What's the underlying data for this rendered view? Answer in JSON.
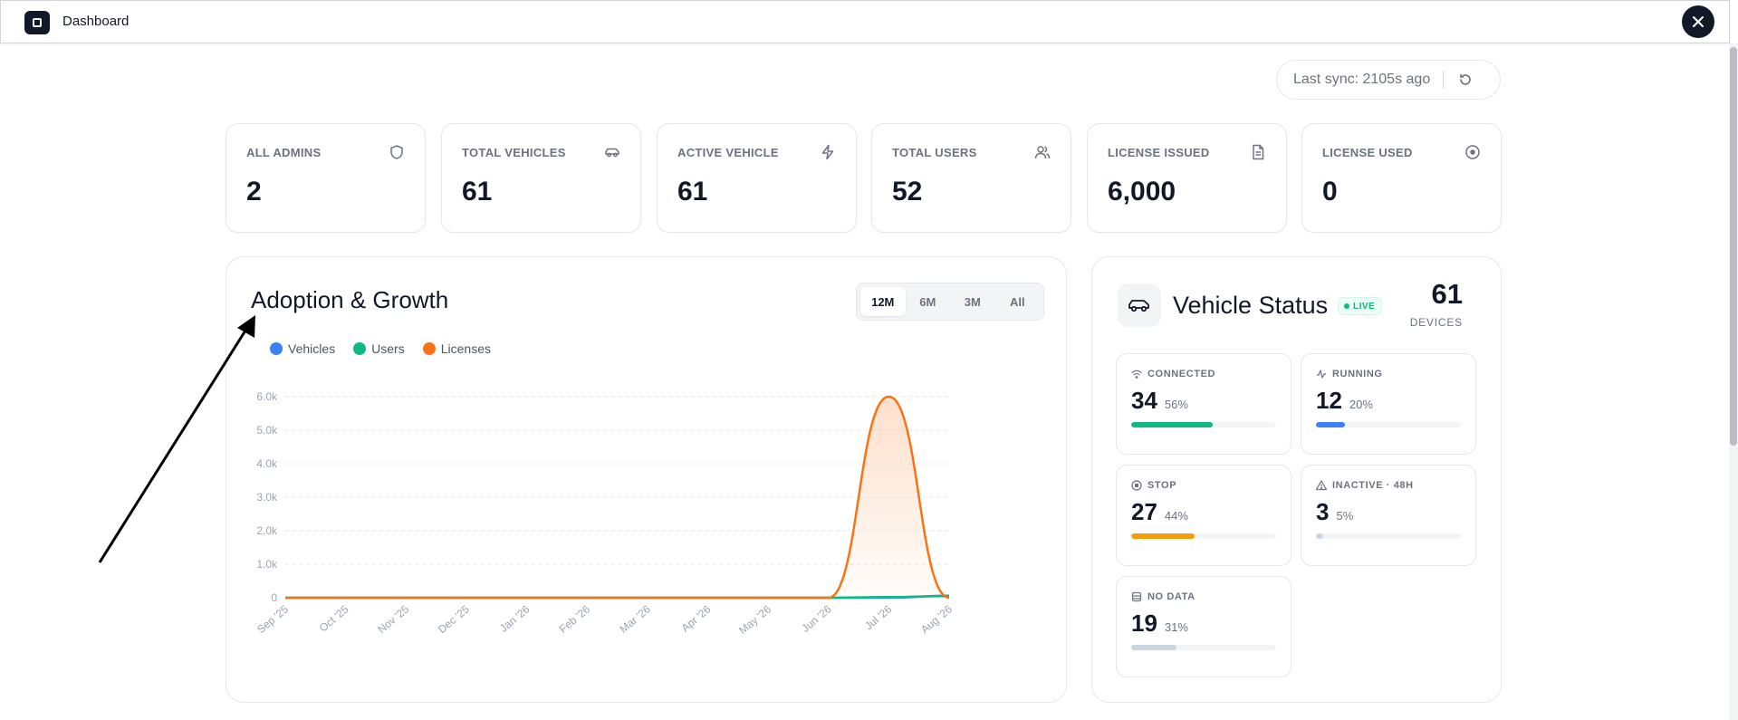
{
  "app": {
    "title": "Dashboard",
    "close_icon": "close-icon"
  },
  "sync": {
    "text": "Last sync: 2105s ago",
    "refresh_icon": "refresh-icon"
  },
  "stats": [
    {
      "label": "ALL ADMINS",
      "value": "2",
      "icon": "shield-icon"
    },
    {
      "label": "TOTAL VEHICLES",
      "value": "61",
      "icon": "car-icon"
    },
    {
      "label": "ACTIVE VEHICLE",
      "value": "61",
      "icon": "lightning-icon"
    },
    {
      "label": "TOTAL USERS",
      "value": "52",
      "icon": "users-icon"
    },
    {
      "label": "LICENSE ISSUED",
      "value": "6,000",
      "icon": "document-icon"
    },
    {
      "label": "LICENSE USED",
      "value": "0",
      "icon": "target-icon"
    }
  ],
  "adoption": {
    "title": "Adoption & Growth",
    "ranges": [
      "12M",
      "6M",
      "3M",
      "All"
    ],
    "selected_range": "12M",
    "legend": [
      {
        "name": "Vehicles",
        "color": "#3b82f6"
      },
      {
        "name": "Users",
        "color": "#10b981"
      },
      {
        "name": "Licenses",
        "color": "#f97316"
      }
    ]
  },
  "chart_data": {
    "type": "area",
    "title": "Adoption & Growth",
    "categories": [
      "Sep '25",
      "Oct '25",
      "Nov '25",
      "Dec '25",
      "Jan '26",
      "Feb '26",
      "Mar '26",
      "Apr '26",
      "May '26",
      "Jun '26",
      "Jul '26",
      "Aug '26"
    ],
    "series": [
      {
        "name": "Vehicles",
        "color": "#3b82f6",
        "values": [
          0,
          0,
          0,
          0,
          0,
          0,
          0,
          0,
          0,
          0,
          0,
          61
        ]
      },
      {
        "name": "Users",
        "color": "#10b981",
        "values": [
          0,
          0,
          0,
          0,
          0,
          0,
          0,
          0,
          0,
          0,
          20,
          52
        ]
      },
      {
        "name": "Licenses",
        "color": "#f97316",
        "values": [
          0,
          0,
          0,
          0,
          0,
          0,
          0,
          0,
          0,
          0,
          6000,
          0
        ]
      }
    ],
    "yticks": [
      "0",
      "1.0k",
      "2.0k",
      "3.0k",
      "4.0k",
      "5.0k",
      "6.0k"
    ],
    "ylim": [
      0,
      6000
    ],
    "grid": true,
    "legend_position": "top-left"
  },
  "vehicle_status": {
    "title": "Vehicle Status",
    "live_label": "LIVE",
    "count": "61",
    "count_label": "DEVICES",
    "items": [
      {
        "label": "CONNECTED",
        "value": "34",
        "pct": "56%",
        "fraction": 0.56,
        "color": "#10b981",
        "icon": "wifi-icon"
      },
      {
        "label": "RUNNING",
        "value": "12",
        "pct": "20%",
        "fraction": 0.2,
        "color": "#3b82f6",
        "icon": "activity-icon"
      },
      {
        "label": "STOP",
        "value": "27",
        "pct": "44%",
        "fraction": 0.44,
        "color": "#f59e0b",
        "icon": "stop-icon"
      },
      {
        "label": "INACTIVE · 48H",
        "value": "3",
        "pct": "5%",
        "fraction": 0.05,
        "color": "#cbd5e1",
        "icon": "warning-icon"
      },
      {
        "label": "NO DATA",
        "value": "19",
        "pct": "31%",
        "fraction": 0.31,
        "color": "#cbd5e1",
        "icon": "database-icon"
      }
    ]
  }
}
